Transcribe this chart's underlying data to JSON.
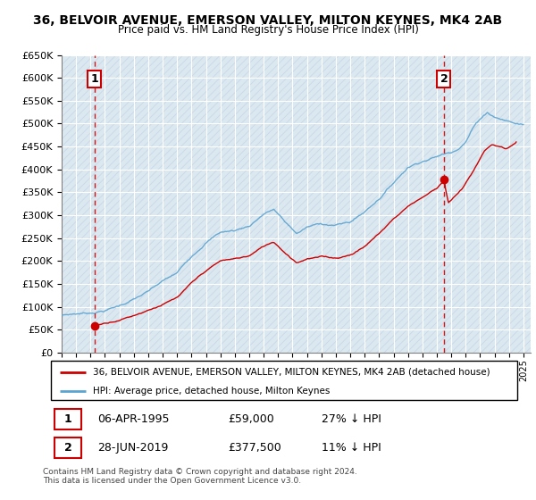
{
  "title": "36, BELVOIR AVENUE, EMERSON VALLEY, MILTON KEYNES, MK4 2AB",
  "subtitle": "Price paid vs. HM Land Registry's House Price Index (HPI)",
  "ylabel_ticks": [
    "£0",
    "£50K",
    "£100K",
    "£150K",
    "£200K",
    "£250K",
    "£300K",
    "£350K",
    "£400K",
    "£450K",
    "£500K",
    "£550K",
    "£600K",
    "£650K"
  ],
  "ytick_values": [
    0,
    50000,
    100000,
    150000,
    200000,
    250000,
    300000,
    350000,
    400000,
    450000,
    500000,
    550000,
    600000,
    650000
  ],
  "sale1_date": 1995.27,
  "sale1_price": 59000,
  "sale1_label": "1",
  "sale2_date": 2019.49,
  "sale2_price": 377500,
  "sale2_label": "2",
  "legend_property": "36, BELVOIR AVENUE, EMERSON VALLEY, MILTON KEYNES, MK4 2AB (detached house)",
  "legend_hpi": "HPI: Average price, detached house, Milton Keynes",
  "table_row1": [
    "1",
    "06-APR-1995",
    "£59,000",
    "27% ↓ HPI"
  ],
  "table_row2": [
    "2",
    "28-JUN-2019",
    "£377,500",
    "11% ↓ HPI"
  ],
  "footnote": "Contains HM Land Registry data © Crown copyright and database right 2024.\nThis data is licensed under the Open Government Licence v3.0.",
  "hpi_color": "#5ba3d0",
  "property_color": "#cc0000",
  "vline_color": "#cc0000",
  "bg_hatch_color": "#e8eef5",
  "xmin": 1993,
  "xmax": 2025.5,
  "ymin": 0,
  "ymax": 650000,
  "hpi_start_year": 1993.0,
  "hpi_end_year": 2025.0,
  "prop_start_year": 1995.0,
  "prop_end_year": 2024.5
}
